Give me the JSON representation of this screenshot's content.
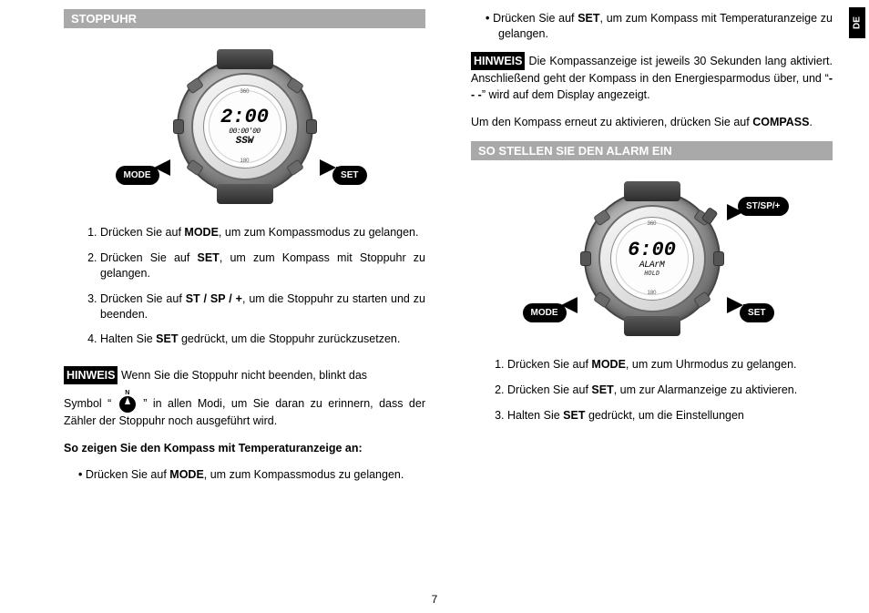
{
  "language_tab": "DE",
  "page_number": "7",
  "left": {
    "header": "STOPPUHR",
    "watch": {
      "top_dial": "360",
      "bottom_dial": "180",
      "big": "2:00",
      "sub1": "00:00'00",
      "sub2": "SSW",
      "pill_left": "MODE",
      "pill_right": "SET"
    },
    "steps": [
      "Drücken Sie auf <b>MODE</b>, um zum Kompassmodus zu gelangen.",
      "Drücken Sie auf <b>SET</b>, um zum Kompass mit Stoppuhr zu gelangen.",
      "Drücken Sie auf <b>ST / SP / +</b>, um die Stoppuhr zu starten und zu beenden.",
      "Halten Sie <b>SET</b> gedrückt, um die Stoppuhr zurückzusetzen."
    ],
    "hinweis_pre": "<span class=\"hinweis-label\">HINWEIS</span> Wenn Sie die Stoppuhr nicht beenden, blinkt das",
    "hinweis_post": "Symbol “ <span class=\"icon-circle\"><span class=\"wedge\"></span><span class=\"n\">N</span></span> ” in allen Modi, um Sie daran zu erinnern, dass der Zähler der Stoppuhr noch ausgeführt wird.",
    "sub_head": "So zeigen Sie den Kompass mit Temperaturanzeige an:",
    "bullet": "Drücken Sie auf <b>MODE</b>, um zum Kompassmodus zu gelangen."
  },
  "right": {
    "bullet_top": "Drücken Sie auf <b>SET</b>, um zum Kompass mit Temperaturanzeige zu gelangen.",
    "hinweis": "<span class=\"hinweis-label\">HINWEIS</span> Die Kompassanzeige ist jeweils 30 Sekunden lang aktiviert. Anschließend geht der Kompass in den Energiesparmodus über, und “<b>- - -</b>” wird auf dem Display angezeigt.",
    "para2": "Um den Kompass erneut zu aktivieren, drücken Sie auf <b>COMPASS</b>.",
    "header": "SO STELLEN SIE DEN ALARM EIN",
    "watch": {
      "top_dial": "360",
      "bottom_dial": "180",
      "big": "6:00",
      "sub1": "ALArM",
      "sub2": "HOLD",
      "pill_tr": "ST/SP/+",
      "pill_bl": "MODE",
      "pill_br": "SET"
    },
    "steps": [
      "Drücken Sie auf <b>MODE</b>, um zum Uhrmodus zu gelangen.",
      "Drücken Sie auf <b>SET</b>, um zur Alarmanzeige zu aktivieren.",
      "Halten Sie <b>SET</b> gedrückt, um die Einstellungen"
    ]
  }
}
